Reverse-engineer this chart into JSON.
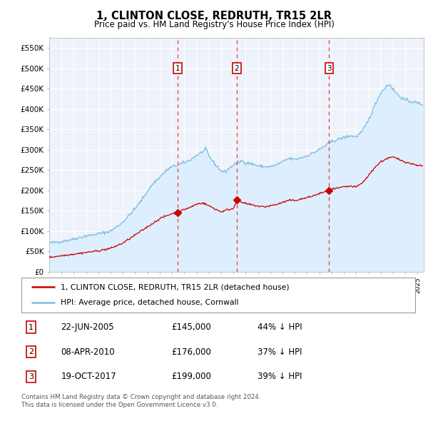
{
  "title": "1, CLINTON CLOSE, REDRUTH, TR15 2LR",
  "subtitle": "Price paid vs. HM Land Registry's House Price Index (HPI)",
  "legend_line1": "1, CLINTON CLOSE, REDRUTH, TR15 2LR (detached house)",
  "legend_line2": "HPI: Average price, detached house, Cornwall",
  "footnote1": "Contains HM Land Registry data © Crown copyright and database right 2024.",
  "footnote2": "This data is licensed under the Open Government Licence v3.0.",
  "transactions": [
    {
      "num": 1,
      "date": "22-JUN-2005",
      "price": 145000,
      "pct": "44%",
      "dir": "↓",
      "x_year": 2005.47
    },
    {
      "num": 2,
      "date": "08-APR-2010",
      "price": 176000,
      "pct": "37%",
      "dir": "↓",
      "x_year": 2010.27
    },
    {
      "num": 3,
      "date": "19-OCT-2017",
      "price": 199000,
      "pct": "39%",
      "dir": "↓",
      "x_year": 2017.8
    }
  ],
  "hpi_color": "#7bbde0",
  "hpi_fill_color": "#ddeeff",
  "price_color": "#cc0000",
  "vline_color": "#ee3333",
  "marker_color": "#cc0000",
  "background_color": "#ffffff",
  "plot_bg_color": "#eef2fa",
  "ylim": [
    0,
    575000
  ],
  "xlim_start": 1995.0,
  "xlim_end": 2025.5,
  "yticks": [
    0,
    50000,
    100000,
    150000,
    200000,
    250000,
    300000,
    350000,
    400000,
    450000,
    500000,
    550000
  ],
  "ytick_labels": [
    "£0",
    "£50K",
    "£100K",
    "£150K",
    "£200K",
    "£250K",
    "£300K",
    "£350K",
    "£400K",
    "£450K",
    "£500K",
    "£550K"
  ],
  "xticks": [
    1995,
    1996,
    1997,
    1998,
    1999,
    2000,
    2001,
    2002,
    2003,
    2004,
    2005,
    2006,
    2007,
    2008,
    2009,
    2010,
    2011,
    2012,
    2013,
    2014,
    2015,
    2016,
    2017,
    2018,
    2019,
    2020,
    2021,
    2022,
    2023,
    2024,
    2025
  ]
}
